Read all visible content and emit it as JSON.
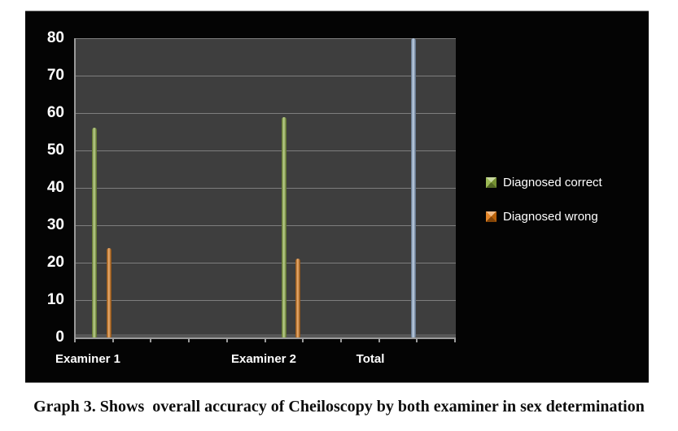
{
  "caption": "Graph 3. Shows  overall accuracy of Cheiloscopy by both examiner in sex determination",
  "chart_data": {
    "type": "bar",
    "title": "",
    "categories": [
      "Examiner 1",
      "Examiner 2",
      "Total"
    ],
    "series": [
      {
        "name": "Diagnosed correct",
        "color": "#8fb13d",
        "values": [
          56,
          59,
          null
        ]
      },
      {
        "name": "Diagnosed wrong",
        "color": "#e0760c",
        "values": [
          24,
          21,
          null
        ]
      },
      {
        "name": "Total",
        "color": "#95b3d7",
        "values": [
          null,
          null,
          80
        ]
      }
    ],
    "legend": {
      "position": "right",
      "entries": [
        {
          "label": "Diagnosed correct",
          "color": "#8fb13d"
        },
        {
          "label": "Diagnosed wrong",
          "color": "#e0760c"
        }
      ]
    },
    "xlabel": "",
    "ylabel": "",
    "ylim": [
      0,
      80
    ],
    "ytick_step": 10,
    "y_tick_labels": [
      "80",
      "70",
      "60",
      "50",
      "40",
      "30",
      "20",
      "10",
      "0"
    ],
    "grid": true,
    "colors": {
      "chart_background": "#040404",
      "plot_background": "#3e3e3e",
      "gridline": "#8a8a8a",
      "text": "#ffffff"
    }
  }
}
